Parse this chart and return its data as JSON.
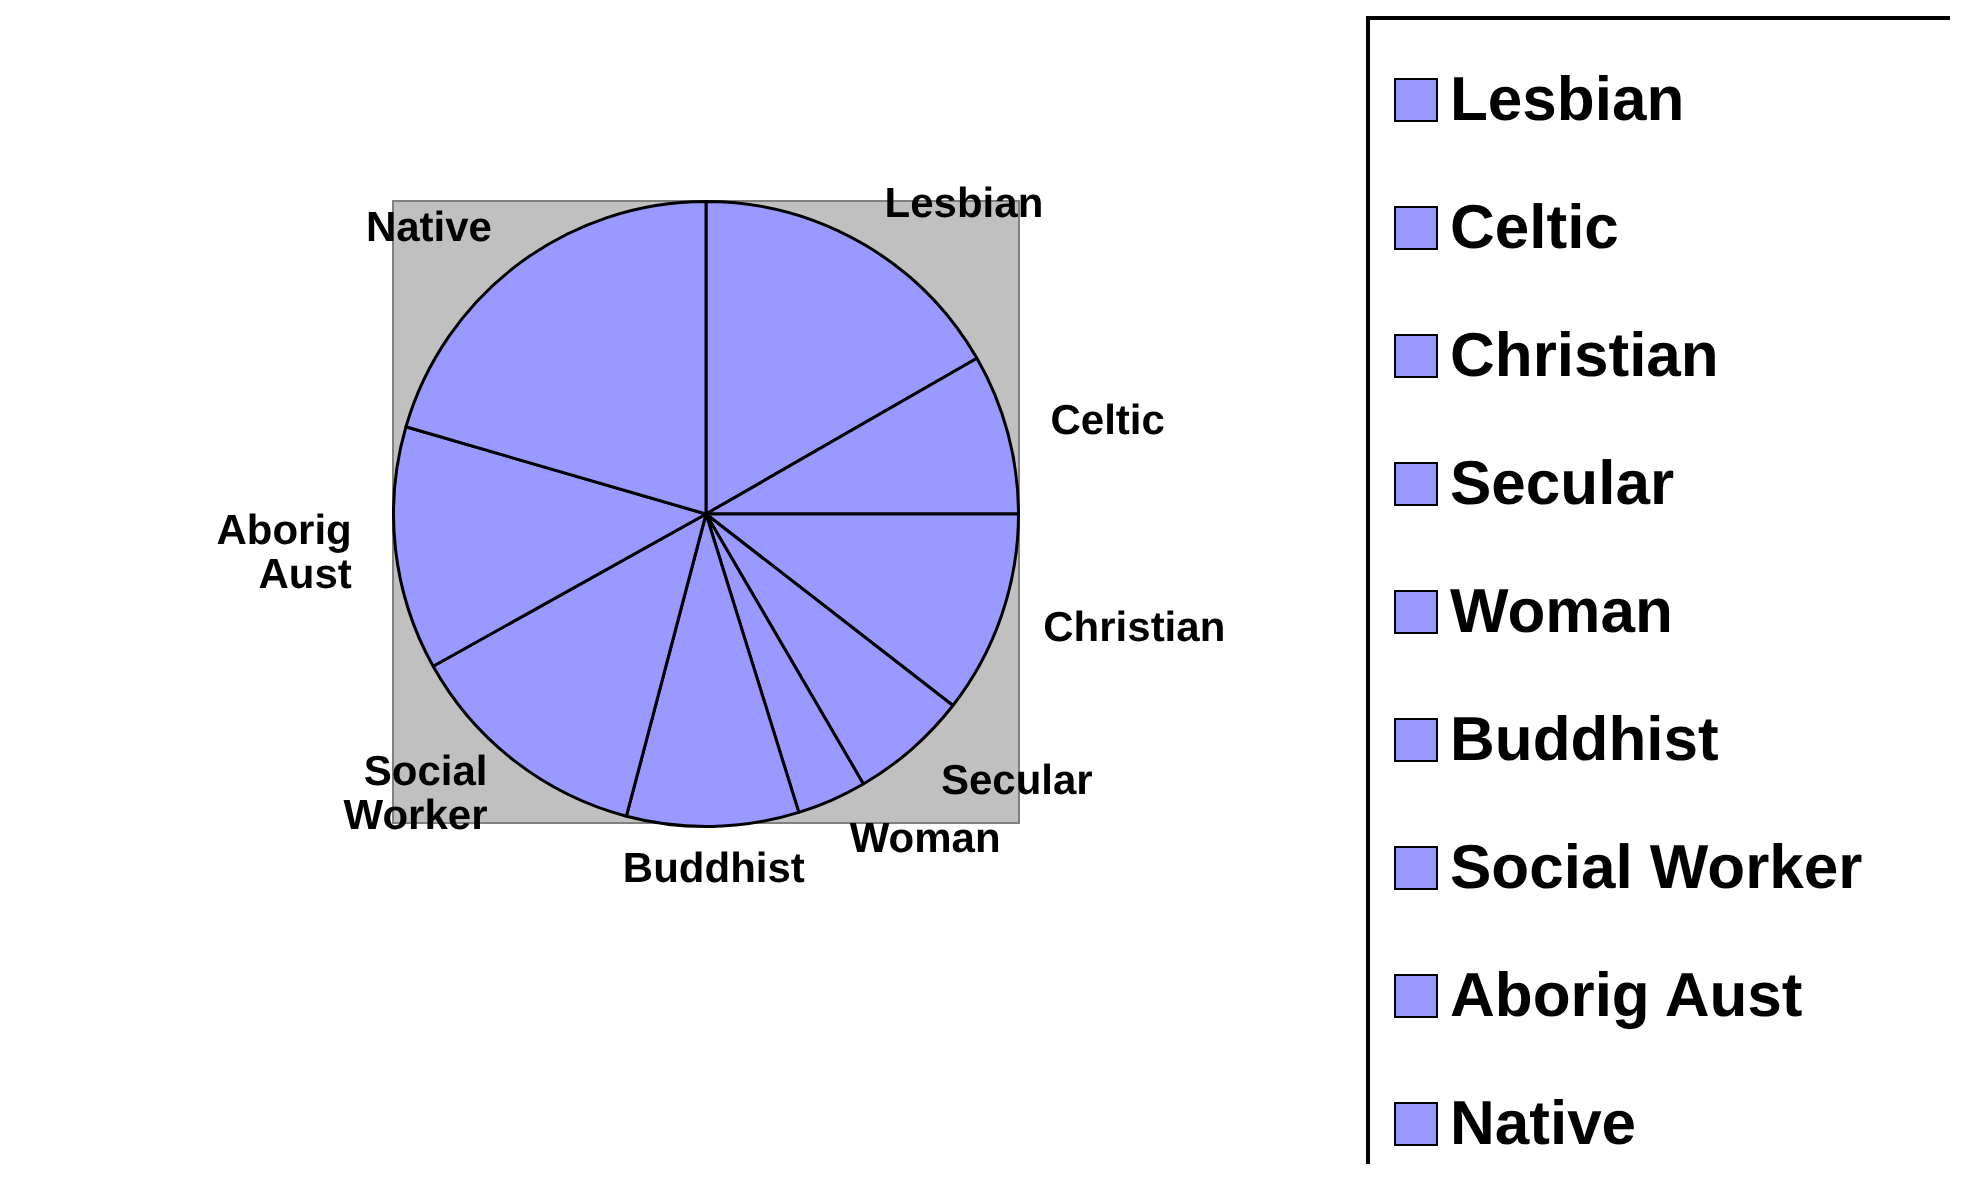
{
  "chart_data": {
    "type": "pie",
    "categories": [
      "Lesbian",
      "Celtic",
      "Christian",
      "Secular",
      "Woman",
      "Buddhist",
      "Social Worker",
      "Aborig Aust",
      "Native"
    ],
    "values": [
      16.7,
      8.3,
      10.5,
      6.1,
      3.6,
      8.9,
      12.8,
      12.6,
      20.5
    ],
    "colors": [
      "#9999ff",
      "#9999ff",
      "#9999ff",
      "#9999ff",
      "#9999ff",
      "#9999ff",
      "#9999ff",
      "#9999ff",
      "#9999ff"
    ],
    "legend": "right"
  }
}
